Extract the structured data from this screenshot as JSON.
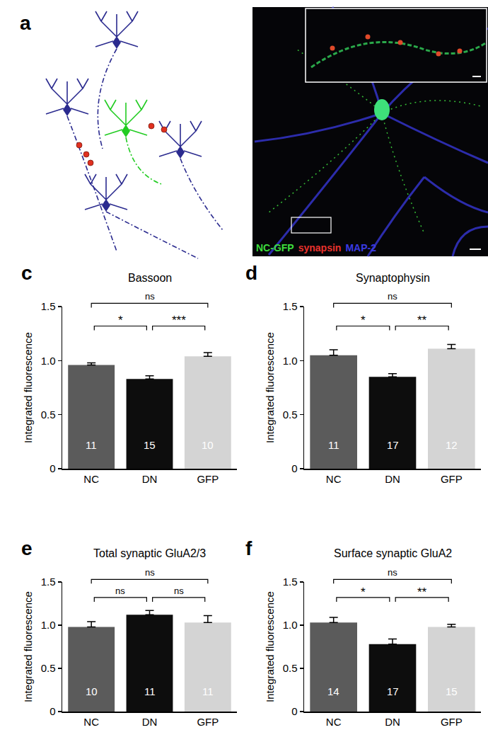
{
  "panel_a": {
    "label": "a",
    "stain_labels": [
      {
        "text": "NC-GFP",
        "color": "#3ddc3d"
      },
      {
        "text": "synapsin",
        "color": "#e8322d"
      },
      {
        "text": "MAP-2",
        "color": "#3a3ae0"
      }
    ]
  },
  "chart_data": [
    {
      "type": "bar",
      "label": "c",
      "title": "Bassoon",
      "ylabel": "Integrated fluorescence",
      "categories": [
        "NC",
        "DN",
        "GFP"
      ],
      "values": [
        0.96,
        0.83,
        1.04
      ],
      "errors": [
        0.02,
        0.03,
        0.035
      ],
      "n": [
        11,
        15,
        10
      ],
      "colors": [
        "#5b5b5b",
        "#0d0d0d",
        "#d4d4d4"
      ],
      "ylim": [
        0,
        1.5
      ],
      "yticks": [
        0,
        0.5,
        {
          "value": 1,
          "label": "1.0"
        },
        1.5
      ],
      "comparisons": [
        {
          "groups": [
            "NC",
            "DN"
          ],
          "label": "*"
        },
        {
          "groups": [
            "DN",
            "GFP"
          ],
          "label": "***"
        },
        {
          "groups": [
            "NC",
            "GFP"
          ],
          "label": "ns"
        }
      ]
    },
    {
      "type": "bar",
      "label": "d",
      "title": "Synaptophysin",
      "ylabel": "Integrated fluorescence",
      "categories": [
        "NC",
        "DN",
        "GFP"
      ],
      "values": [
        1.05,
        0.85,
        1.11
      ],
      "errors": [
        0.05,
        0.03,
        0.04
      ],
      "n": [
        11,
        17,
        12
      ],
      "colors": [
        "#5b5b5b",
        "#0d0d0d",
        "#d4d4d4"
      ],
      "ylim": [
        0,
        1.5
      ],
      "yticks": [
        0,
        0.5,
        {
          "value": 1,
          "label": "1.0"
        },
        1.5
      ],
      "comparisons": [
        {
          "groups": [
            "NC",
            "DN"
          ],
          "label": "*"
        },
        {
          "groups": [
            "DN",
            "GFP"
          ],
          "label": "**"
        },
        {
          "groups": [
            "NC",
            "GFP"
          ],
          "label": "ns"
        }
      ]
    },
    {
      "type": "bar",
      "label": "e",
      "title": "Total synaptic GluA2/3",
      "ylabel": "Integrated fluorescence",
      "categories": [
        "NC",
        "DN",
        "GFP"
      ],
      "values": [
        0.98,
        1.12,
        1.03
      ],
      "errors": [
        0.06,
        0.05,
        0.08
      ],
      "n": [
        10,
        11,
        11
      ],
      "colors": [
        "#5b5b5b",
        "#0d0d0d",
        "#d4d4d4"
      ],
      "ylim": [
        0,
        1.5
      ],
      "yticks": [
        0,
        0.5,
        {
          "value": 1,
          "label": "1.0"
        },
        1.5
      ],
      "comparisons": [
        {
          "groups": [
            "NC",
            "DN"
          ],
          "label": "ns"
        },
        {
          "groups": [
            "DN",
            "GFP"
          ],
          "label": "ns"
        },
        {
          "groups": [
            "NC",
            "GFP"
          ],
          "label": "ns"
        }
      ]
    },
    {
      "type": "bar",
      "label": "f",
      "title": "Surface synaptic GluA2",
      "ylabel": "Integrated fluorescence",
      "categories": [
        "NC",
        "DN",
        "GFP"
      ],
      "values": [
        1.03,
        0.78,
        0.98
      ],
      "errors": [
        0.06,
        0.06,
        0.03
      ],
      "n": [
        14,
        17,
        15
      ],
      "colors": [
        "#5b5b5b",
        "#0d0d0d",
        "#d4d4d4"
      ],
      "ylim": [
        0,
        1.5
      ],
      "yticks": [
        0,
        0.5,
        {
          "value": 1,
          "label": "1.0"
        },
        1.5
      ],
      "comparisons": [
        {
          "groups": [
            "NC",
            "DN"
          ],
          "label": "*"
        },
        {
          "groups": [
            "DN",
            "GFP"
          ],
          "label": "**"
        },
        {
          "groups": [
            "NC",
            "GFP"
          ],
          "label": "ns"
        }
      ]
    }
  ]
}
